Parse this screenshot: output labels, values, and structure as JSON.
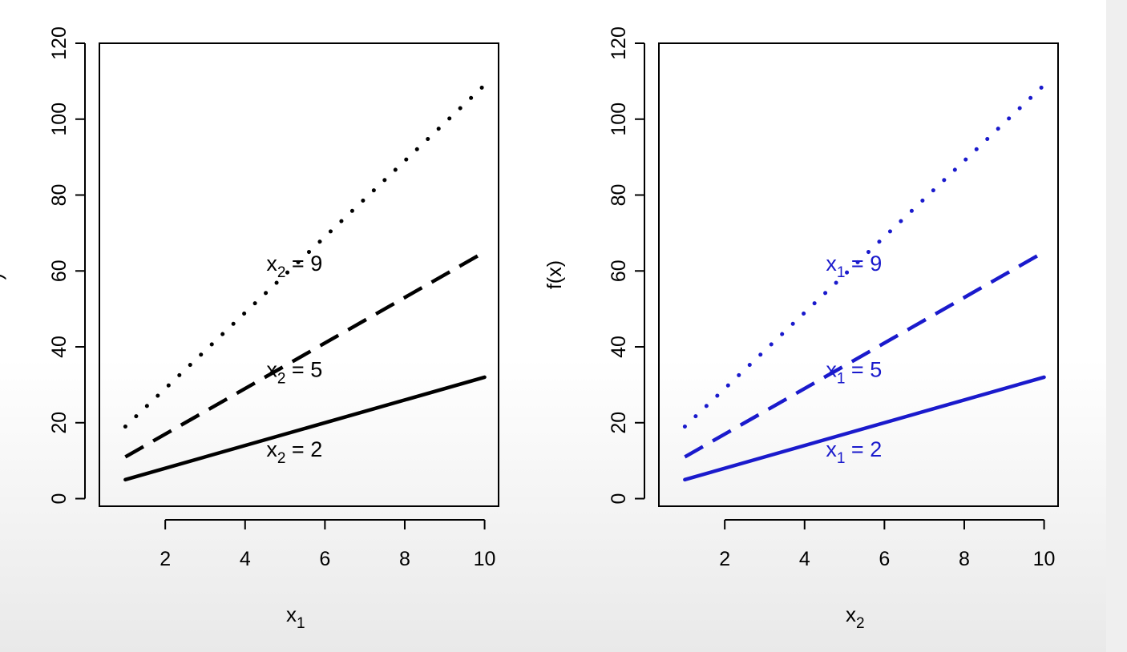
{
  "chart_data": [
    {
      "type": "line",
      "xlabel": "x",
      "xlabel_sub": "1",
      "ylabel": "",
      "xlim": [
        0.35,
        10.35
      ],
      "ylim": [
        -2,
        120
      ],
      "xticks": [
        2,
        4,
        6,
        8,
        10
      ],
      "yticks": [
        0,
        20,
        40,
        60,
        80,
        100,
        120
      ],
      "color": "#000000",
      "grid": false,
      "series": [
        {
          "x": [
            1,
            10
          ],
          "y": [
            19,
            109
          ],
          "style": "dotted",
          "label": {
            "var": "x",
            "sub": "2",
            "eq": " = ",
            "val": "9",
            "at": [
              6.1,
              62
            ]
          }
        },
        {
          "x": [
            1,
            10
          ],
          "y": [
            11,
            65
          ],
          "style": "dashed",
          "label": {
            "var": "x",
            "sub": "2",
            "eq": " = ",
            "val": "5",
            "at": [
              6.1,
              34
            ]
          }
        },
        {
          "x": [
            1,
            10
          ],
          "y": [
            5,
            32
          ],
          "style": "solid",
          "label": {
            "var": "x",
            "sub": "2",
            "eq": " = ",
            "val": "2",
            "at": [
              6.1,
              13
            ]
          }
        }
      ]
    },
    {
      "type": "line",
      "xlabel": "x",
      "xlabel_sub": "2",
      "ylabel": "f(x)",
      "xlim": [
        0.35,
        10.35
      ],
      "ylim": [
        -2,
        120
      ],
      "xticks": [
        2,
        4,
        6,
        8,
        10
      ],
      "yticks": [
        0,
        20,
        40,
        60,
        80,
        100,
        120
      ],
      "color": "#1a1acc",
      "grid": false,
      "series": [
        {
          "x": [
            1,
            10
          ],
          "y": [
            19,
            109
          ],
          "style": "dotted",
          "label": {
            "var": "x",
            "sub": "1",
            "eq": " = ",
            "val": "9",
            "at": [
              6.1,
              62
            ]
          }
        },
        {
          "x": [
            1,
            10
          ],
          "y": [
            11,
            65
          ],
          "style": "dashed",
          "label": {
            "var": "x",
            "sub": "1",
            "eq": " = ",
            "val": "5",
            "at": [
              6.1,
              34
            ]
          }
        },
        {
          "x": [
            1,
            10
          ],
          "y": [
            5,
            32
          ],
          "style": "solid",
          "label": {
            "var": "x",
            "sub": "1",
            "eq": " = ",
            "val": "2",
            "at": [
              6.1,
              13
            ]
          }
        }
      ]
    }
  ],
  "left_ylabel_fragment": ")"
}
